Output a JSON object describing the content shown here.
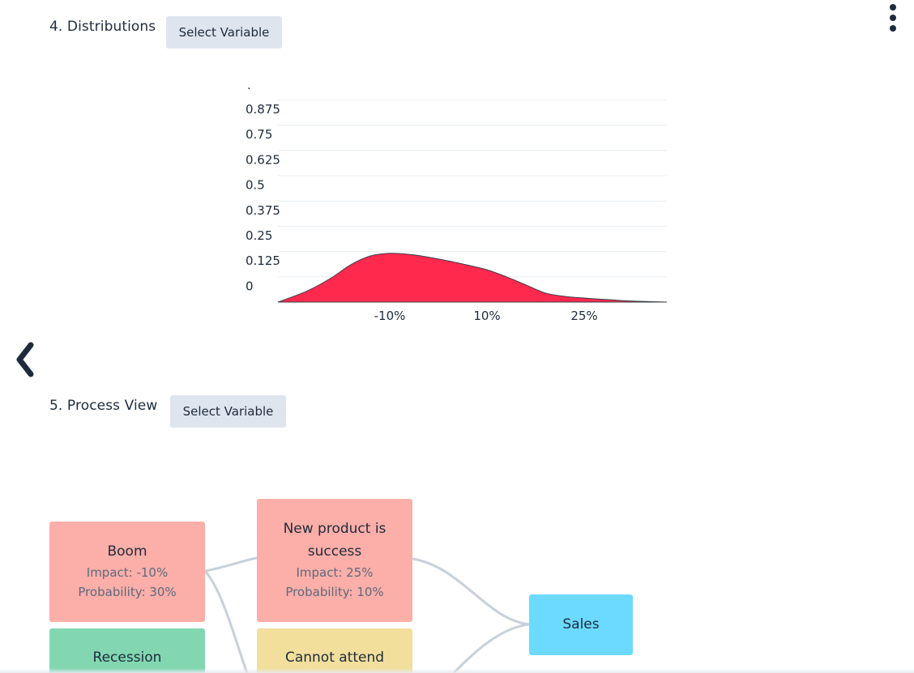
{
  "colors": {
    "distribution_fill": "#ff284d",
    "node_negative": "#fcaea8",
    "node_positive": "#82d7b1",
    "node_neutral": "#f1df9b",
    "node_target": "#6cdaff",
    "button_bg": "#dfe5ee",
    "edge": "#c7d0db"
  },
  "icons": {
    "more": "vertical-ellipsis",
    "back": "chevron-left"
  },
  "distributions": {
    "title": "4. Distributions",
    "select_label": "Select Variable"
  },
  "chart_data": {
    "type": "area",
    "title": "",
    "xlabel": "",
    "ylabel": "",
    "y_top_label": ".",
    "y_ticks": [
      "0.875",
      "0.75",
      "0.625",
      "0.5",
      "0.375",
      "0.25",
      "0.125",
      "0"
    ],
    "x_ticks": [
      "-10%",
      "10%",
      "25%"
    ],
    "grid": true,
    "x": [
      -33,
      -27,
      -22,
      -18,
      -14,
      -10,
      -6,
      -2,
      2,
      6,
      10,
      14,
      18,
      22,
      26,
      30,
      35,
      40,
      47
    ],
    "y": [
      0,
      0.055,
      0.12,
      0.185,
      0.228,
      0.241,
      0.236,
      0.222,
      0.204,
      0.183,
      0.16,
      0.125,
      0.085,
      0.045,
      0.028,
      0.02,
      0.012,
      0.005,
      0
    ]
  },
  "process": {
    "title": "5. Process View",
    "select_label": "Select Variable",
    "nodes": {
      "boom": {
        "title": "Boom",
        "impact": "Impact: -10%",
        "probability": "Probability: 30%"
      },
      "recession": {
        "title": "Recession"
      },
      "new_product": {
        "title": "New product is success",
        "impact": "Impact: 25%",
        "probability": "Probability: 10%"
      },
      "cannot_attend": {
        "title": "Cannot attend"
      },
      "sales": {
        "title": "Sales"
      }
    }
  }
}
